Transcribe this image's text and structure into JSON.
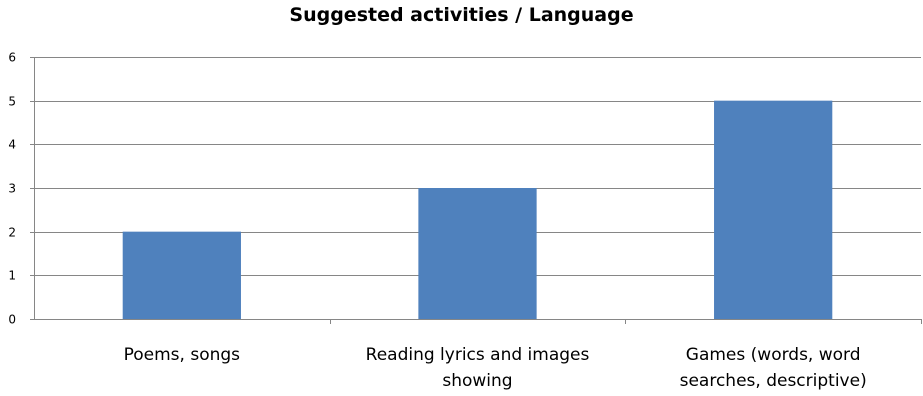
{
  "chart_data": {
    "type": "bar",
    "title": "Suggested activities / Language",
    "xlabel": "",
    "ylabel": "",
    "categories": [
      [
        "Poems, songs"
      ],
      [
        "Reading lyrics and images",
        "showing"
      ],
      [
        "Games (words, word",
        "searches, descriptive)"
      ]
    ],
    "values": [
      2,
      3,
      5
    ],
    "ylim": [
      0,
      6
    ],
    "yticks": [
      "0",
      "1",
      "2",
      "3",
      "4",
      "5",
      "6"
    ],
    "grid": true,
    "legend": "none",
    "bar_color": "#4F81BD",
    "grid_color": "#868686",
    "axis_color": "#868686"
  }
}
